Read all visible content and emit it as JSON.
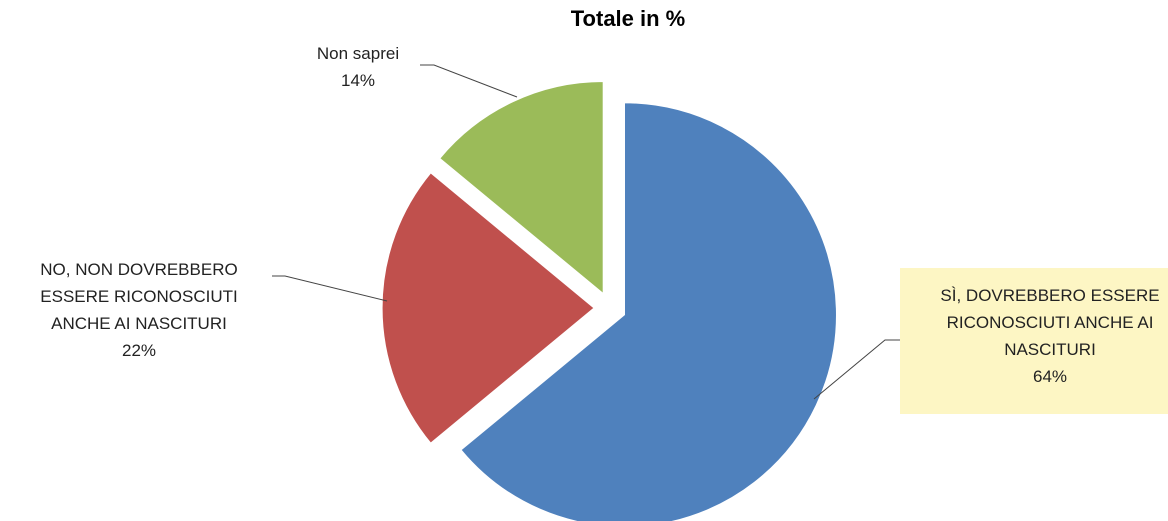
{
  "chart_data": {
    "type": "pie",
    "title": "Totale in %",
    "slices": [
      {
        "label_lines": [
          "SÌ, DOVREBBERO ESSERE",
          "RICONOSCIUTI ANCHE AI",
          "NASCITURI"
        ],
        "value": 64,
        "value_label": "64%",
        "color": "#4f81bd",
        "exploded": true
      },
      {
        "label_lines": [
          "NO, NON DOVREBBERO",
          "ESSERE RICONOSCIUTI",
          "ANCHE AI NASCITURI"
        ],
        "value": 22,
        "value_label": "22%",
        "color": "#c0504d",
        "exploded": true
      },
      {
        "label_lines": [
          "Non saprei"
        ],
        "value": 14,
        "value_label": "14%",
        "color": "#9bbb59",
        "exploded": true
      }
    ]
  }
}
